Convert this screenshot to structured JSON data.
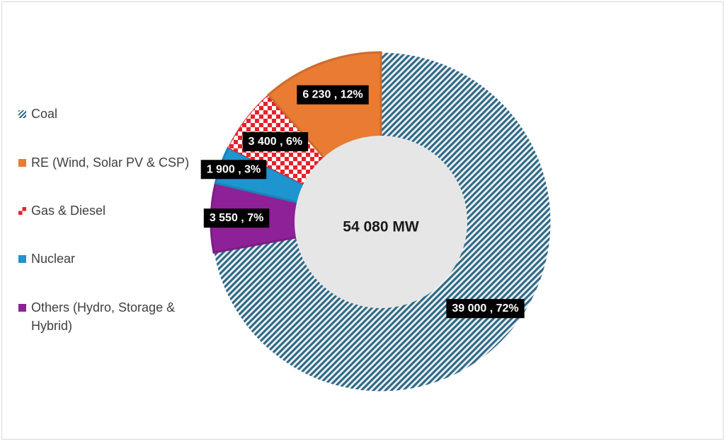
{
  "chart_data": {
    "type": "pie",
    "donut": true,
    "center_label": "54 080 MW",
    "legend_position": "left",
    "slices": [
      {
        "name": "Coal",
        "value": 39000,
        "percent": 72,
        "label": "39 000 , 72%",
        "color": "#2e6a87",
        "pattern": "diagonal-stripes"
      },
      {
        "name": "RE (Wind, Solar PV & CSP)",
        "value": 6230,
        "percent": 12,
        "label": "6 230 , 12%",
        "color": "#e97b33",
        "pattern": "solid"
      },
      {
        "name": "Gas & Diesel",
        "value": 3400,
        "percent": 6,
        "label": "3 400 , 6%",
        "color": "#e8202a",
        "pattern": "checker"
      },
      {
        "name": "Nuclear",
        "value": 1900,
        "percent": 3,
        "label": "1 900 , 3%",
        "color": "#1e95cf",
        "pattern": "solid"
      },
      {
        "name": "Others (Hydro, Storage & Hybrid)",
        "value": 3550,
        "percent": 7,
        "label": "3 550 , 7%",
        "color": "#8e2197",
        "pattern": "solid"
      }
    ],
    "draw_order": [
      "Coal",
      "Others (Hydro, Storage & Hybrid)",
      "Nuclear",
      "Gas & Diesel",
      "RE (Wind, Solar PV & CSP)"
    ]
  }
}
